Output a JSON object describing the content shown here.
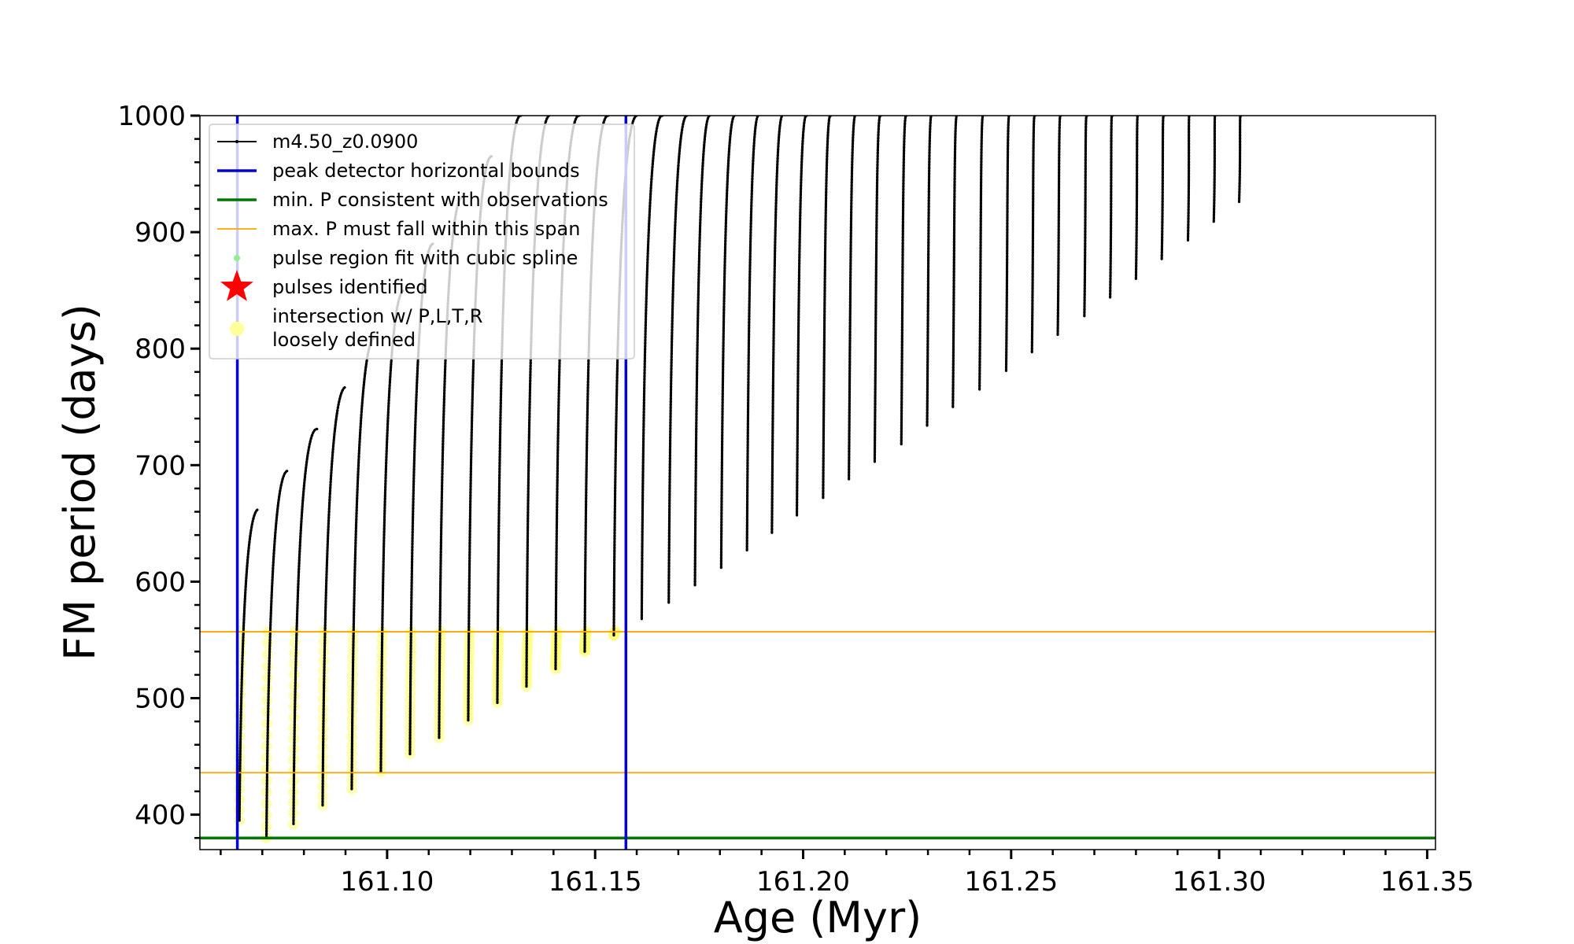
{
  "chart_data": {
    "type": "scatter",
    "xlabel": "Age (Myr)",
    "ylabel": "FM period (days)",
    "xlim": [
      161.055,
      161.352
    ],
    "ylim": [
      370,
      1000
    ],
    "x_ticks": [
      161.1,
      161.15,
      161.2,
      161.25,
      161.3,
      161.35
    ],
    "x_tick_labels": [
      "161.10",
      "161.15",
      "161.20",
      "161.25",
      "161.30",
      "161.35"
    ],
    "y_ticks": [
      400,
      500,
      600,
      700,
      800,
      900,
      1000
    ],
    "y_tick_labels": [
      "400",
      "500",
      "600",
      "700",
      "800",
      "900",
      "1000"
    ],
    "legend": {
      "placement": "upper-left",
      "entries": [
        {
          "label": "m4.50_z0.0900",
          "kind": "line-marker",
          "color": "#000000"
        },
        {
          "label": "peak detector horizontal bounds",
          "kind": "line",
          "color": "#0000dd"
        },
        {
          "label": "min. P consistent with observations",
          "kind": "line",
          "color": "#007700"
        },
        {
          "label": "max. P must fall within this span",
          "kind": "thin-line",
          "color": "#ffa500"
        },
        {
          "label": "pulse region fit with cubic spline",
          "kind": "dot",
          "color": "#90ee90"
        },
        {
          "label": "pulses identified",
          "kind": "star",
          "color": "#ff0000"
        },
        {
          "label": "intersection w/ P,L,T,R\nloosely defined",
          "kind": "circle",
          "color": "#ffff99"
        }
      ]
    },
    "vertical_lines": [
      {
        "name": "peak detector horizontal bounds",
        "x": 161.064,
        "color": "#0000dd"
      },
      {
        "name": "peak detector horizontal bounds",
        "x": 161.1574,
        "color": "#0000dd"
      }
    ],
    "horizontal_lines": [
      {
        "name": "min. P consistent with observations",
        "y": 380,
        "color": "#007700"
      },
      {
        "name": "max. P must fall within this span",
        "y": 557,
        "color": "#ffa500"
      },
      {
        "name": "max. P must fall within this span",
        "y": 436,
        "color": "#ffa500"
      }
    ],
    "series": [
      {
        "name": "m4.50_z0.0900",
        "color": "#000000",
        "pulses_note": "Pulse sequence: start (age, period_min) and peak (age, period_max); values above 1000 clipped",
        "pulses": [
          {
            "x_start": 161.0645,
            "x_peak": 161.069,
            "y_min": 395,
            "y_max": 662
          },
          {
            "x_start": 161.071,
            "x_peak": 161.076,
            "y_min": 380,
            "y_max": 695
          },
          {
            "x_start": 161.0775,
            "x_peak": 161.083,
            "y_min": 392,
            "y_max": 731
          },
          {
            "x_start": 161.0845,
            "x_peak": 161.09,
            "y_min": 408,
            "y_max": 767
          },
          {
            "x_start": 161.0915,
            "x_peak": 161.097,
            "y_min": 422,
            "y_max": 810
          },
          {
            "x_start": 161.0985,
            "x_peak": 161.104,
            "y_min": 437,
            "y_max": 850
          },
          {
            "x_start": 161.1055,
            "x_peak": 161.111,
            "y_min": 452,
            "y_max": 890
          },
          {
            "x_start": 161.1125,
            "x_peak": 161.118,
            "y_min": 466,
            "y_max": 930
          },
          {
            "x_start": 161.1195,
            "x_peak": 161.125,
            "y_min": 481,
            "y_max": 965
          },
          {
            "x_start": 161.1265,
            "x_peak": 161.132,
            "y_min": 496,
            "y_max": 1000
          },
          {
            "x_start": 161.1335,
            "x_peak": 161.139,
            "y_min": 510,
            "y_max": 1000
          },
          {
            "x_start": 161.1405,
            "x_peak": 161.146,
            "y_min": 525,
            "y_max": 1000
          },
          {
            "x_start": 161.1475,
            "x_peak": 161.153,
            "y_min": 540,
            "y_max": 1000
          },
          {
            "x_start": 161.1545,
            "x_peak": 161.16,
            "y_min": 554,
            "y_max": 1000
          },
          {
            "x_start": 161.1612,
            "x_peak": 161.166,
            "y_min": 568,
            "y_max": 1000
          },
          {
            "x_start": 161.1677,
            "x_peak": 161.172,
            "y_min": 582,
            "y_max": 1000
          },
          {
            "x_start": 161.174,
            "x_peak": 161.1775,
            "y_min": 597,
            "y_max": 1000
          },
          {
            "x_start": 161.1803,
            "x_peak": 161.1835,
            "y_min": 612,
            "y_max": 1000
          },
          {
            "x_start": 161.1865,
            "x_peak": 161.1892,
            "y_min": 627,
            "y_max": 1000
          },
          {
            "x_start": 161.1925,
            "x_peak": 161.195,
            "y_min": 642,
            "y_max": 1000
          },
          {
            "x_start": 161.1985,
            "x_peak": 161.2007,
            "y_min": 657,
            "y_max": 1000
          },
          {
            "x_start": 161.2048,
            "x_peak": 161.2065,
            "y_min": 672,
            "y_max": 1000
          },
          {
            "x_start": 161.211,
            "x_peak": 161.2125,
            "y_min": 688,
            "y_max": 1000
          },
          {
            "x_start": 161.2172,
            "x_peak": 161.2185,
            "y_min": 703,
            "y_max": 1000
          },
          {
            "x_start": 161.2236,
            "x_peak": 161.2247,
            "y_min": 718,
            "y_max": 1000
          },
          {
            "x_start": 161.2298,
            "x_peak": 161.2308,
            "y_min": 734,
            "y_max": 1000
          },
          {
            "x_start": 161.236,
            "x_peak": 161.2369,
            "y_min": 750,
            "y_max": 1000
          },
          {
            "x_start": 161.2424,
            "x_peak": 161.2432,
            "y_min": 765,
            "y_max": 1000
          },
          {
            "x_start": 161.2488,
            "x_peak": 161.2495,
            "y_min": 781,
            "y_max": 1000
          },
          {
            "x_start": 161.255,
            "x_peak": 161.2556,
            "y_min": 797,
            "y_max": 1000
          },
          {
            "x_start": 161.2612,
            "x_peak": 161.2618,
            "y_min": 812,
            "y_max": 1000
          },
          {
            "x_start": 161.2676,
            "x_peak": 161.2681,
            "y_min": 828,
            "y_max": 1000
          },
          {
            "x_start": 161.2738,
            "x_peak": 161.2742,
            "y_min": 844,
            "y_max": 1000
          },
          {
            "x_start": 161.28,
            "x_peak": 161.2804,
            "y_min": 860,
            "y_max": 1000
          },
          {
            "x_start": 161.2862,
            "x_peak": 161.2866,
            "y_min": 877,
            "y_max": 1000
          },
          {
            "x_start": 161.2925,
            "x_peak": 161.2928,
            "y_min": 893,
            "y_max": 1000
          },
          {
            "x_start": 161.2987,
            "x_peak": 161.299,
            "y_min": 909,
            "y_max": 1000
          },
          {
            "x_start": 161.3048,
            "x_peak": 161.3051,
            "y_min": 926,
            "y_max": 1000
          }
        ]
      },
      {
        "name": "intersection w/ P,L,T,R\nloosely defined",
        "color": "#ffff99",
        "band": [
          436,
          557
        ]
      }
    ]
  }
}
